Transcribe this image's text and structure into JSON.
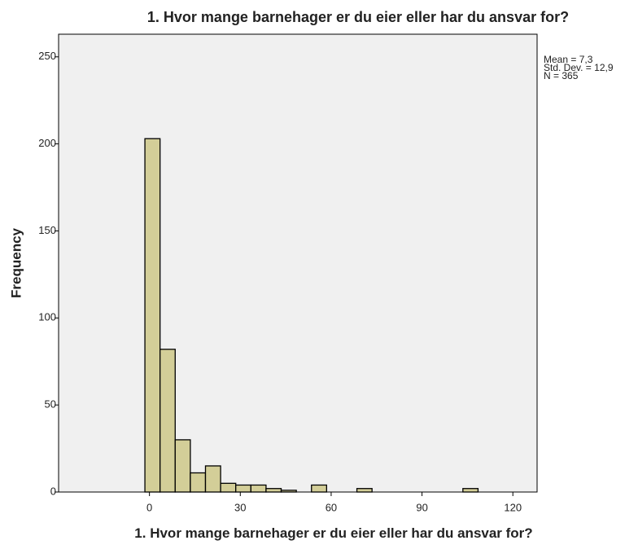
{
  "chart_data": {
    "type": "histogram",
    "title": "1. Hvor mange barnehager er du eier eller har du ansvar for?",
    "x_label": "1. Hvor mange barnehager er du eier eller har du ansvar for?",
    "y_label": "Frequency",
    "bins": [
      -1.5,
      3.5,
      8.5,
      13.5,
      18.5,
      23.5,
      28.5,
      33.5,
      38.5,
      43.5,
      48.5,
      53.5,
      58.5,
      63.5,
      68.5,
      73.5,
      78.5,
      83.5,
      88.5,
      93.5,
      98.5,
      103.5,
      108.5
    ],
    "counts": [
      203,
      82,
      30,
      11,
      15,
      5,
      4,
      4,
      2,
      1,
      0,
      4,
      0,
      0,
      2,
      0,
      0,
      0,
      0,
      0,
      0,
      2
    ],
    "color": "#d3ce98",
    "xlim": [
      -30,
      128
    ],
    "ylim": [
      0,
      263
    ],
    "xticks": [
      0,
      30,
      60,
      90,
      120
    ],
    "yticks": [
      0,
      50,
      100,
      150,
      200,
      250
    ],
    "stats": [
      "Mean = 7,3",
      "Std. Dev. = 12,9",
      "N = 365"
    ]
  }
}
